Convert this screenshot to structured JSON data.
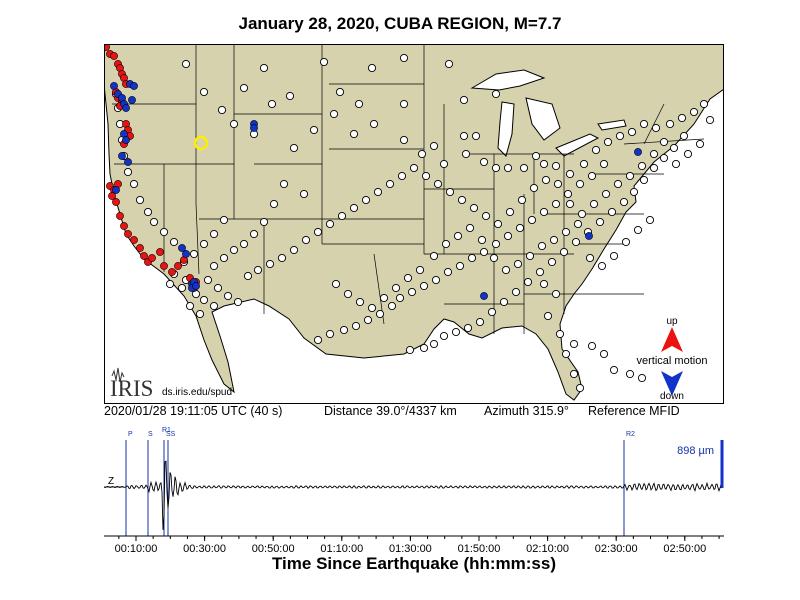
{
  "title": "January 28, 2020, CUBA REGION, M=7.7",
  "logo": {
    "text": "IRIS",
    "url_text": "ds.iris.edu/spud"
  },
  "legend": {
    "up": "up",
    "label": "vertical motion",
    "down": "down",
    "up_color": "#ee1111",
    "down_color": "#1133cc"
  },
  "info": {
    "time": "2020/01/28 19:11:05 UTC (40 s)",
    "distance": "Distance  39.0°/4337 km",
    "azimuth": "Azimuth 315.9°",
    "reference": "Reference MFID"
  },
  "trace": {
    "component": "Z",
    "amplitude": "898 µm",
    "phases": [
      "P",
      "S",
      "R1",
      "SS",
      "R2"
    ],
    "xlabel": "Time Since Earthquake (hh:mm:ss)",
    "ticks": [
      "00:10:00",
      "00:30:00",
      "00:50:00",
      "01:10:00",
      "01:30:00",
      "01:50:00",
      "02:10:00",
      "02:30:00",
      "02:50:00"
    ]
  },
  "colors": {
    "land": "#d6d2ae",
    "water": "#ffffff",
    "up": "#ee1111",
    "down": "#1133cc",
    "reference_station": "#ffee00"
  }
}
